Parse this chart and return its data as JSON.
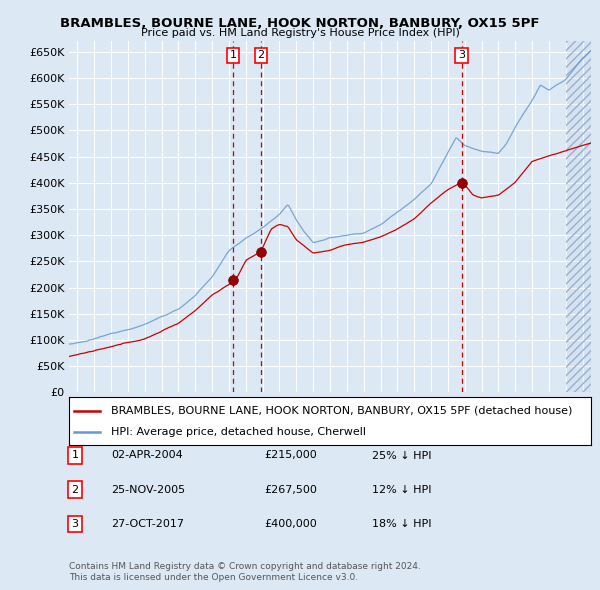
{
  "title": "BRAMBLES, BOURNE LANE, HOOK NORTON, BANBURY, OX15 5PF",
  "subtitle": "Price paid vs. HM Land Registry's House Price Index (HPI)",
  "ylim": [
    0,
    670000
  ],
  "yticks": [
    0,
    50000,
    100000,
    150000,
    200000,
    250000,
    300000,
    350000,
    400000,
    450000,
    500000,
    550000,
    600000,
    650000
  ],
  "xlim_start": 1994.5,
  "xlim_end": 2025.5,
  "background_color": "#dce9f5",
  "grid_color": "#ffffff",
  "red_line_color": "#cc0000",
  "blue_line_color": "#6699cc",
  "sale_marker_color": "#990000",
  "dashed_line_color": "#cc0000",
  "legend_entries": [
    "BRAMBLES, BOURNE LANE, HOOK NORTON, BANBURY, OX15 5PF (detached house)",
    "HPI: Average price, detached house, Cherwell"
  ],
  "transactions": [
    {
      "label": "1",
      "date": "02-APR-2004",
      "x": 2004.25,
      "price": 215000,
      "pct": "25%",
      "dir": "↓"
    },
    {
      "label": "2",
      "date": "25-NOV-2005",
      "x": 2005.9,
      "price": 267500,
      "pct": "12%",
      "dir": "↓"
    },
    {
      "label": "3",
      "date": "27-OCT-2017",
      "x": 2017.82,
      "price": 400000,
      "pct": "18%",
      "dir": "↓"
    }
  ],
  "footer_line1": "Contains HM Land Registry data © Crown copyright and database right 2024.",
  "footer_line2": "This data is licensed under the Open Government Licence v3.0.",
  "hpi_key_years": [
    1994.5,
    1995.5,
    1997,
    1999,
    2001,
    2002,
    2003,
    2004,
    2005,
    2006,
    2007,
    2007.5,
    2008,
    2008.5,
    2009,
    2010,
    2011,
    2012,
    2013,
    2014,
    2015,
    2016,
    2016.5,
    2017,
    2017.5,
    2018,
    2018.5,
    2019,
    2020,
    2020.5,
    2021,
    2022,
    2022.5,
    2023,
    2024,
    2025,
    2025.5
  ],
  "hpi_key_vals": [
    92000,
    96000,
    110000,
    130000,
    160000,
    185000,
    220000,
    270000,
    295000,
    315000,
    340000,
    360000,
    330000,
    305000,
    285000,
    295000,
    300000,
    305000,
    320000,
    345000,
    370000,
    400000,
    430000,
    460000,
    490000,
    475000,
    470000,
    465000,
    460000,
    480000,
    510000,
    560000,
    590000,
    580000,
    600000,
    640000,
    655000
  ],
  "prop_key_years": [
    1994.5,
    1995,
    1997,
    1999,
    2001,
    2002,
    2003,
    2004.0,
    2004.25,
    2004.5,
    2005.0,
    2005.9,
    2006.0,
    2006.5,
    2007,
    2007.5,
    2008,
    2009,
    2010,
    2011,
    2012,
    2013,
    2014,
    2015,
    2016,
    2017.0,
    2017.82,
    2018.0,
    2018.5,
    2019,
    2020,
    2021,
    2022,
    2023,
    2024,
    2025,
    2025.5
  ],
  "prop_key_vals": [
    68000,
    72000,
    85000,
    100000,
    130000,
    155000,
    185000,
    205000,
    215000,
    220000,
    250000,
    267500,
    275000,
    310000,
    320000,
    315000,
    290000,
    265000,
    270000,
    280000,
    285000,
    295000,
    310000,
    330000,
    360000,
    385000,
    400000,
    395000,
    375000,
    370000,
    375000,
    400000,
    440000,
    450000,
    460000,
    470000,
    475000
  ]
}
